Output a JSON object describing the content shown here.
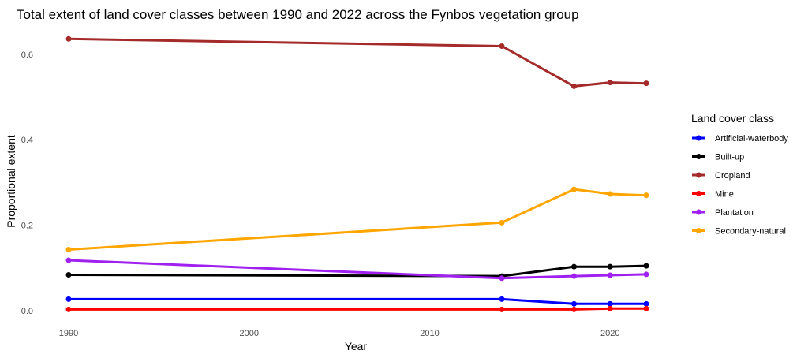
{
  "chart_data": {
    "type": "line",
    "title": "Total extent of land cover classes between 1990 and 2022 across the Fynbos vegetation group",
    "xlabel": "Year",
    "ylabel": "Proportional extent",
    "xlim": [
      1990,
      2022
    ],
    "ylim": [
      0,
      0.65
    ],
    "x_ticks": [
      1990,
      2000,
      2010,
      2020
    ],
    "y_ticks": [
      0.0,
      0.2,
      0.4,
      0.6
    ],
    "x_tick_labels": [
      "1990",
      "2000",
      "2010",
      "2020"
    ],
    "y_tick_labels": [
      "0.0",
      "0.2",
      "0.4",
      "0.6"
    ],
    "grid": false,
    "legend": {
      "title": "Land cover class",
      "position": "right"
    },
    "x": [
      1990,
      2014,
      2018,
      2020,
      2022
    ],
    "series": [
      {
        "name": "Artificial-waterbody",
        "color": "#0000FF",
        "values": [
          0.027,
          0.027,
          0.016,
          0.016,
          0.016
        ]
      },
      {
        "name": "Built-up",
        "color": "#000000",
        "values": [
          0.084,
          0.081,
          0.103,
          0.103,
          0.105
        ]
      },
      {
        "name": "Cropland",
        "color": "#A52A2A",
        "values": [
          0.636,
          0.619,
          0.525,
          0.534,
          0.532
        ]
      },
      {
        "name": "Mine",
        "color": "#FF0000",
        "values": [
          0.003,
          0.003,
          0.003,
          0.005,
          0.005
        ]
      },
      {
        "name": "Plantation",
        "color": "#A020F0",
        "values": [
          0.118,
          0.076,
          0.081,
          0.083,
          0.085
        ]
      },
      {
        "name": "Secondary-natural",
        "color": "#FFA500",
        "values": [
          0.143,
          0.206,
          0.284,
          0.273,
          0.27
        ]
      }
    ]
  }
}
